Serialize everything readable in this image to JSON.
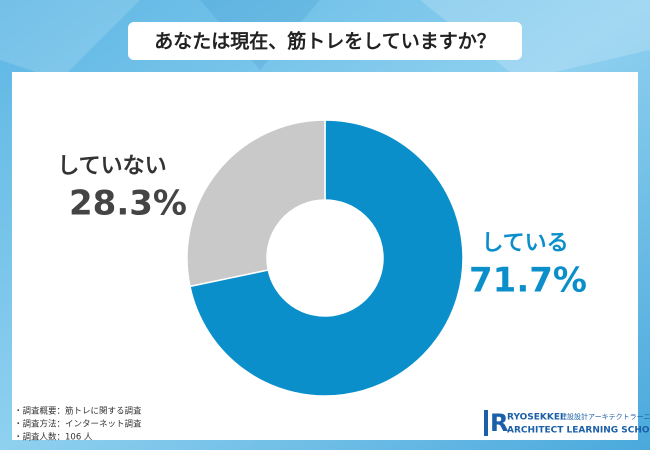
{
  "chart_data": {
    "type": "donut",
    "title": "あなたは現在、筋トレをしていますか？",
    "categories": [
      "している",
      "していない"
    ],
    "values": [
      71.7,
      28.3
    ],
    "value_labels": [
      "71.7%",
      "28.3%"
    ],
    "colors": [
      "#0a8fcb",
      "#c9c9c9"
    ],
    "notes": [
      "・調査概要：筋トレに関する調査",
      "・調査方法：インターネット調査",
      "・調査人数：106 人"
    ],
    "logo": {
      "name": "RYOSEKKEI",
      "sub": "建設設計アーキテクトラーニング",
      "school": "ARCHITECT LEARNING SCHOOL"
    }
  }
}
